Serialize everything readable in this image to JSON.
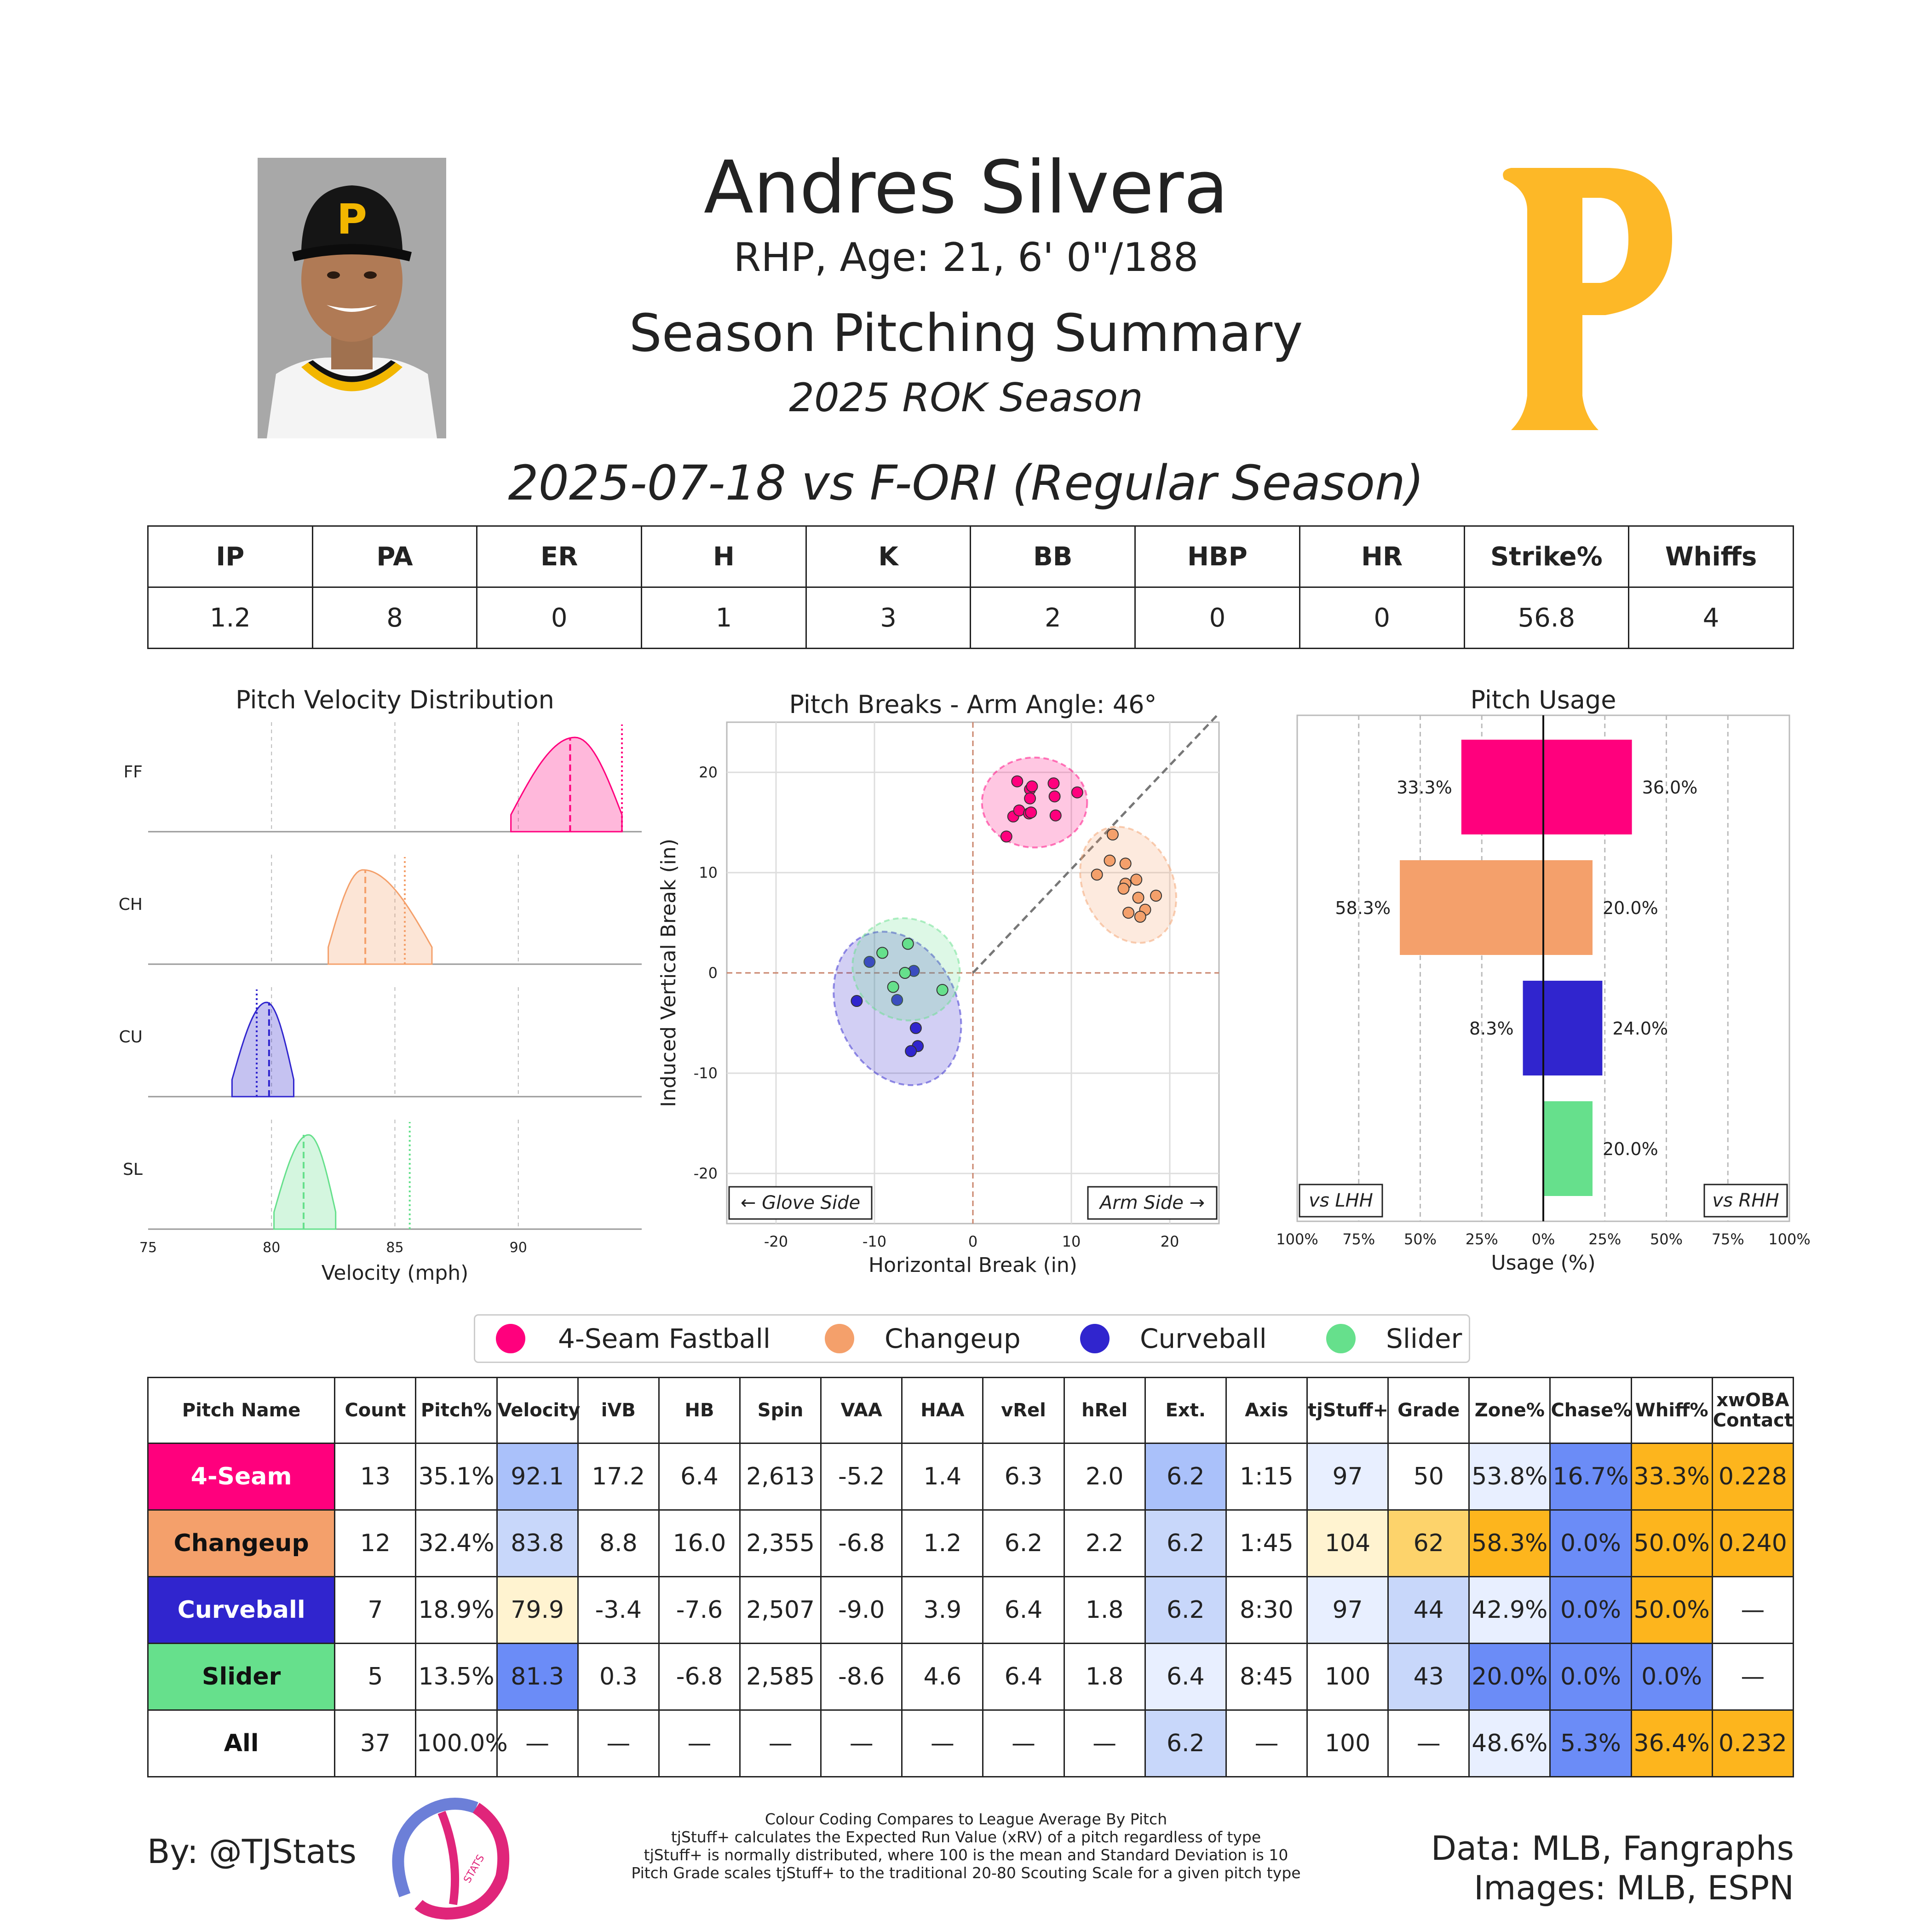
{
  "header": {
    "player_name": "Andres Silvera",
    "bio": "RHP, Age: 21, 6' 0\"/188",
    "summary_title": "Season Pitching Summary",
    "season": "2025 ROK Season",
    "game_title": "2025-07-18 vs F-ORI (Regular Season)"
  },
  "stats_table": {
    "headers": [
      "IP",
      "PA",
      "ER",
      "H",
      "K",
      "BB",
      "HBP",
      "HR",
      "Strike%",
      "Whiffs"
    ],
    "values": [
      "1.2",
      "8",
      "0",
      "1",
      "3",
      "2",
      "0",
      "0",
      "56.8",
      "4"
    ]
  },
  "colors": {
    "ff": "#ff007d",
    "ch": "#f4a06b",
    "cu": "#3025ce",
    "sl": "#66e08c",
    "blue_strong": "#6b8cf7",
    "blue_mid": "#aac1fa",
    "blue_light": "#c8d7fa",
    "blue_pale": "#e8efff",
    "orange_strong": "#fdb51d",
    "orange_mid": "#fdd36b",
    "orange_pale": "#fff3d0",
    "neutral": "#ffffff"
  },
  "chart_data": [
    {
      "type": "area",
      "title": "Pitch Velocity Distribution",
      "xlabel": "Velocity (mph)",
      "xlim": [
        75,
        95
      ],
      "xticks": [
        "75",
        "80",
        "85",
        "90"
      ],
      "series": [
        {
          "name": "FF",
          "min": 89.7,
          "max": 94.2,
          "peak": 92.3,
          "mean": 92.1,
          "league_avg": 94.2
        },
        {
          "name": "CH",
          "min": 82.3,
          "max": 86.5,
          "peak": 83.7,
          "mean": 83.8,
          "league_avg": 85.4
        },
        {
          "name": "CU",
          "min": 78.4,
          "max": 80.9,
          "peak": 79.8,
          "mean": 79.9,
          "league_avg": 79.4
        },
        {
          "name": "SL",
          "min": 80.1,
          "max": 82.6,
          "peak": 81.5,
          "mean": 81.3,
          "league_avg": 85.6
        }
      ]
    },
    {
      "type": "scatter",
      "title": "Pitch Breaks - Arm Angle: 46°",
      "xlabel": "Horizontal Break (in)",
      "ylabel": "Induced Vertical Break (in)",
      "xlim": [
        -25,
        25
      ],
      "ylim": [
        -25,
        25
      ],
      "xticks": [
        "-20",
        "-10",
        "0",
        "10",
        "20"
      ],
      "yticks": [
        "20",
        "10",
        "0",
        "-10",
        "-20"
      ],
      "arm_angle_deg": 46,
      "glove_side_label": "← Glove Side",
      "arm_side_label": "Arm Side →",
      "series": [
        {
          "name": "FF",
          "points": [
            [
              3.4,
              13.6
            ],
            [
              4.1,
              15.6
            ],
            [
              4.7,
              16.2
            ],
            [
              4.5,
              19.1
            ],
            [
              5.8,
              18.3
            ],
            [
              5.8,
              17.4
            ],
            [
              6.0,
              18.6
            ],
            [
              5.7,
              15.9
            ],
            [
              8.2,
              18.9
            ],
            [
              8.3,
              17.6
            ],
            [
              8.4,
              15.7
            ],
            [
              10.6,
              18.0
            ],
            [
              5.9,
              16.0
            ]
          ]
        },
        {
          "name": "CH",
          "points": [
            [
              14.2,
              13.8
            ],
            [
              13.9,
              11.2
            ],
            [
              12.6,
              9.8
            ],
            [
              15.5,
              10.9
            ],
            [
              15.5,
              8.9
            ],
            [
              16.6,
              9.3
            ],
            [
              16.8,
              7.5
            ],
            [
              18.6,
              7.7
            ],
            [
              15.3,
              8.4
            ],
            [
              17.5,
              6.3
            ],
            [
              15.8,
              6.0
            ],
            [
              17.0,
              5.6
            ]
          ]
        },
        {
          "name": "CU",
          "points": [
            [
              -10.5,
              1.1
            ],
            [
              -11.8,
              -2.8
            ],
            [
              -7.7,
              -2.7
            ],
            [
              -6.0,
              0.2
            ],
            [
              -5.8,
              -5.5
            ],
            [
              -5.6,
              -7.3
            ],
            [
              -6.3,
              -7.8
            ]
          ]
        },
        {
          "name": "SL",
          "points": [
            [
              -9.2,
              2.0
            ],
            [
              -6.6,
              2.9
            ],
            [
              -6.9,
              0.0
            ],
            [
              -8.1,
              -1.4
            ],
            [
              -3.1,
              -1.7
            ]
          ]
        }
      ]
    },
    {
      "type": "bar",
      "title": "Pitch Usage",
      "xlabel": "Usage (%)",
      "xlim": [
        -100,
        100
      ],
      "xticks": [
        "100%",
        "75%",
        "50%",
        "25%",
        "0%",
        "25%",
        "50%",
        "75%",
        "100%"
      ],
      "left_label": "vs LHH",
      "right_label": "vs RHH",
      "categories": [
        "FF",
        "CH",
        "CU",
        "SL"
      ],
      "series": [
        {
          "name": "vs LHH",
          "values": [
            33.3,
            58.3,
            8.3,
            0
          ],
          "labels": [
            "33.3%",
            "58.3%",
            "8.3%",
            ""
          ]
        },
        {
          "name": "vs RHH",
          "values": [
            36.0,
            20.0,
            24.0,
            20.0
          ],
          "labels": [
            "36.0%",
            "20.0%",
            "24.0%",
            "20.0%"
          ]
        }
      ]
    }
  ],
  "legend": {
    "items": [
      "4-Seam Fastball",
      "Changeup",
      "Curveball",
      "Slider"
    ]
  },
  "pitch_table": {
    "headers": [
      "Pitch Name",
      "Count",
      "Pitch%",
      "Velocity",
      "iVB",
      "HB",
      "Spin",
      "VAA",
      "HAA",
      "vRel",
      "hRel",
      "Ext.",
      "Axis",
      "tjStuff+",
      "Grade",
      "Zone%",
      "Chase%",
      "Whiff%",
      "xwOBA Contact"
    ],
    "rows": [
      {
        "name": "4-Seam",
        "bg": "#ff007d",
        "fg": "#ffffff",
        "cells": [
          "13",
          "35.1%",
          "92.1",
          "17.2",
          "6.4",
          "2,613",
          "-5.2",
          "1.4",
          "6.3",
          "2.0",
          "6.2",
          "1:15",
          "97",
          "50",
          "53.8%",
          "16.7%",
          "33.3%",
          "0.228"
        ],
        "shades": [
          "neutral",
          "neutral",
          "blue_mid",
          "neutral",
          "neutral",
          "neutral",
          "neutral",
          "neutral",
          "neutral",
          "neutral",
          "blue_mid",
          "neutral",
          "blue_pale",
          "neutral",
          "blue_pale",
          "blue_strong",
          "orange_strong",
          "orange_strong"
        ]
      },
      {
        "name": "Changeup",
        "bg": "#f4a06b",
        "fg": "#111111",
        "cells": [
          "12",
          "32.4%",
          "83.8",
          "8.8",
          "16.0",
          "2,355",
          "-6.8",
          "1.2",
          "6.2",
          "2.2",
          "6.2",
          "1:45",
          "104",
          "62",
          "58.3%",
          "0.0%",
          "50.0%",
          "0.240"
        ],
        "shades": [
          "neutral",
          "neutral",
          "blue_light",
          "neutral",
          "neutral",
          "neutral",
          "neutral",
          "neutral",
          "neutral",
          "neutral",
          "blue_light",
          "neutral",
          "orange_pale",
          "orange_mid",
          "orange_strong",
          "blue_strong",
          "orange_strong",
          "orange_strong"
        ]
      },
      {
        "name": "Curveball",
        "bg": "#3025ce",
        "fg": "#ffffff",
        "cells": [
          "7",
          "18.9%",
          "79.9",
          "-3.4",
          "-7.6",
          "2,507",
          "-9.0",
          "3.9",
          "6.4",
          "1.8",
          "6.2",
          "8:30",
          "97",
          "44",
          "42.9%",
          "0.0%",
          "50.0%",
          "—"
        ],
        "shades": [
          "neutral",
          "neutral",
          "orange_pale",
          "neutral",
          "neutral",
          "neutral",
          "neutral",
          "neutral",
          "neutral",
          "neutral",
          "blue_light",
          "neutral",
          "blue_pale",
          "blue_light",
          "blue_pale",
          "blue_strong",
          "orange_strong",
          "neutral"
        ]
      },
      {
        "name": "Slider",
        "bg": "#66e08c",
        "fg": "#111111",
        "cells": [
          "5",
          "13.5%",
          "81.3",
          "0.3",
          "-6.8",
          "2,585",
          "-8.6",
          "4.6",
          "6.4",
          "1.8",
          "6.4",
          "8:45",
          "100",
          "43",
          "20.0%",
          "0.0%",
          "0.0%",
          "—"
        ],
        "shades": [
          "neutral",
          "neutral",
          "blue_strong",
          "neutral",
          "neutral",
          "neutral",
          "neutral",
          "neutral",
          "neutral",
          "neutral",
          "blue_pale",
          "neutral",
          "neutral",
          "blue_light",
          "blue_strong",
          "blue_strong",
          "blue_strong",
          "neutral"
        ]
      },
      {
        "name": "All",
        "bg": "#ffffff",
        "fg": "#111111",
        "cells": [
          "37",
          "100.0%",
          "—",
          "—",
          "—",
          "—",
          "—",
          "—",
          "—",
          "—",
          "6.2",
          "—",
          "100",
          "—",
          "48.6%",
          "5.3%",
          "36.4%",
          "0.232"
        ],
        "shades": [
          "neutral",
          "neutral",
          "neutral",
          "neutral",
          "neutral",
          "neutral",
          "neutral",
          "neutral",
          "neutral",
          "neutral",
          "blue_light",
          "neutral",
          "neutral",
          "neutral",
          "blue_pale",
          "blue_strong",
          "orange_strong",
          "orange_strong"
        ]
      }
    ]
  },
  "footer": {
    "byline": "By: @TJStats",
    "brand_mark": "STATS",
    "notes": [
      "Colour Coding Compares to League Average By Pitch",
      "tjStuff+ calculates the Expected Run Value (xRV) of a pitch regardless of type",
      "tjStuff+ is normally distributed, where 100 is the mean and Standard Deviation is 10",
      "Pitch Grade scales tjStuff+ to the traditional 20-80 Scouting Scale for a given pitch type"
    ],
    "credit_data": "Data: MLB, Fangraphs",
    "credit_images": "Images: MLB, ESPN"
  }
}
